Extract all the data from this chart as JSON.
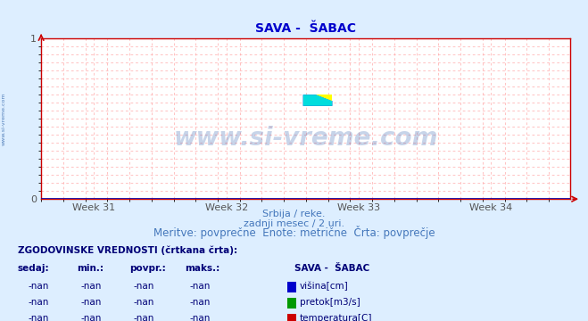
{
  "title": "SAVA -  ŠABAC",
  "title_color": "#0000cc",
  "bg_color": "#ddeeff",
  "plot_bg_color": "#ffffff",
  "grid_color": "#ffaaaa",
  "axis_color": "#cc0000",
  "x_ticks": [
    "Week 31",
    "Week 32",
    "Week 33",
    "Week 34"
  ],
  "ylim": [
    0,
    1
  ],
  "xlim": [
    0,
    1
  ],
  "yticks": [
    0,
    1
  ],
  "watermark": "www.si-vreme.com",
  "watermark_color": "#2255aa",
  "watermark_alpha": 0.25,
  "side_text": "www.si-vreme.com",
  "side_text_color": "#3366aa",
  "subtitle1": "Srbija / reke.",
  "subtitle2": "zadnji mesec / 2 uri.",
  "subtitle3": "Meritve: povprečne  Enote: metrične  Črta: povprečje",
  "subtitle_color": "#4477bb",
  "table_header": "ZGODOVINSKE VREDNOSTI (črtkana črta):",
  "table_header_color": "#000077",
  "col_headers": [
    "sedaj:",
    "min.:",
    "povpr.:",
    "maks.:"
  ],
  "col_header_color": "#000077",
  "station_label": "SAVA -  ŠABAC",
  "station_label_color": "#000077",
  "rows": [
    [
      "-nan",
      "-nan",
      "-nan",
      "-nan",
      "#0000cc",
      "višina[cm]"
    ],
    [
      "-nan",
      "-nan",
      "-nan",
      "-nan",
      "#009900",
      "pretok[m3/s]"
    ],
    [
      "-nan",
      "-nan",
      "-nan",
      "-nan",
      "#cc0000",
      "temperatura[C]"
    ]
  ],
  "row_color": "#000077",
  "logo_yellow": "#ffff00",
  "logo_cyan": "#00dddd",
  "logo_blue": "#0000cc",
  "hline_color": "#0000aa",
  "tick_color": "#555555"
}
